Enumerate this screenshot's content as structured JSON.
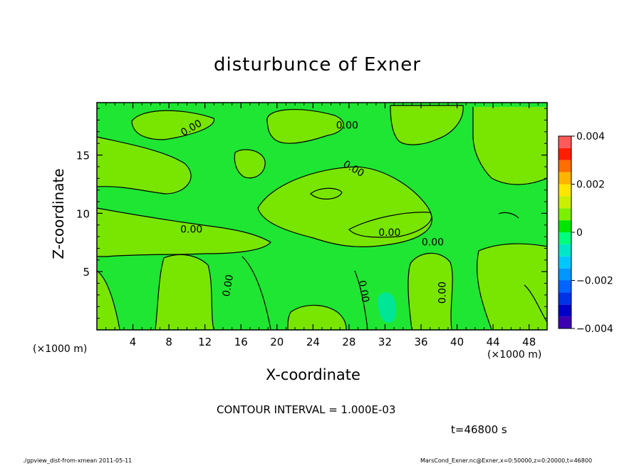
{
  "chart_data": {
    "type": "heatmap",
    "title": "disturbunce of Exner",
    "xlabel": "X-coordinate",
    "ylabel": "Z-coordinate",
    "x_unit_label": "(×1000 m)",
    "xlim": [
      0,
      50
    ],
    "ylim": [
      0,
      19.5
    ],
    "x_ticks": [
      4,
      8,
      12,
      16,
      20,
      24,
      28,
      32,
      36,
      40,
      44,
      48
    ],
    "y_ticks": [
      5,
      10,
      15
    ],
    "contour_labels": [
      {
        "text": "0.00",
        "x": 10.5,
        "z": 17.3,
        "angle": -30
      },
      {
        "text": "0.00",
        "x": 27.8,
        "z": 17.5,
        "angle": 0
      },
      {
        "text": "0.00",
        "x": 28.5,
        "z": 13.8,
        "angle": 30
      },
      {
        "text": "0.00",
        "x": 10.5,
        "z": 8.6,
        "angle": 0
      },
      {
        "text": "0.00",
        "x": 32.5,
        "z": 8.3,
        "angle": 0
      },
      {
        "text": "0.00",
        "x": 37.3,
        "z": 7.5,
        "angle": 0
      },
      {
        "text": "0.00",
        "x": 14.6,
        "z": 3.8,
        "angle": -80
      },
      {
        "text": "0.00",
        "x": 29.6,
        "z": 3.3,
        "angle": 80
      },
      {
        "text": "0.00",
        "x": 38.4,
        "z": 3.2,
        "angle": -90
      }
    ],
    "colorbar": {
      "levels": [
        -0.004,
        -0.0035,
        -0.003,
        -0.0025,
        -0.002,
        -0.0015,
        -0.001,
        -0.0005,
        0,
        0.0005,
        0.001,
        0.0015,
        0.002,
        0.0025,
        0.003,
        0.0035,
        0.004
      ],
      "colors": [
        "#9a00a8",
        "#3c00b0",
        "#0000c8",
        "#0032e6",
        "#0064ff",
        "#0096ff",
        "#00c8ff",
        "#00e6c8",
        "#00ff7c",
        "#00e600",
        "#7cf000",
        "#c8f000",
        "#ffe600",
        "#ffb400",
        "#ff6e00",
        "#ff1e00",
        "#ff5a5a",
        "#ff9696"
      ],
      "tick_labels": [
        "0.004",
        "0.002",
        "0",
        "−0.002",
        "−0.004"
      ]
    },
    "contour_interval_text": "CONTOUR INTERVAL = 1.000E-03",
    "time_text": "t=46800 s"
  },
  "footer": {
    "left": "./gpview_dist-from-xmean  2011-05-11",
    "right": "MarsCond_Exner.nc@Exner,x=0:50000,z=0:20000,t=46800"
  },
  "colors": {
    "zero_band": "#1ee632",
    "positive_band": "#78e600",
    "negative_band": "#00e696",
    "contour_line": "#000000"
  }
}
